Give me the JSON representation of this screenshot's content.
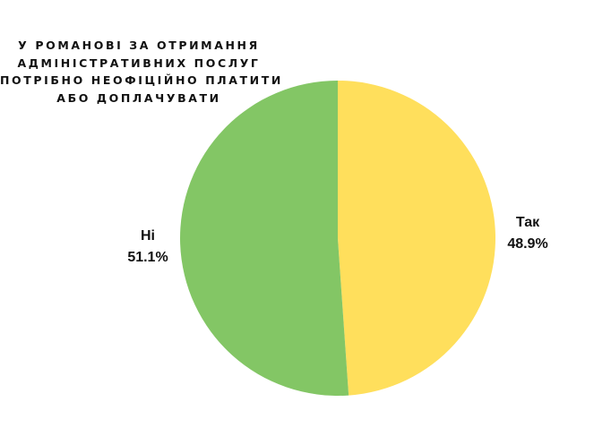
{
  "chart_data": {
    "type": "pie",
    "title_lines": [
      "У РОМАНОВІ ЗА ОТРИМАННЯ",
      "АДМІНІСТРАТИВНИХ ПОСЛУГ",
      "ПОТРІБНО НЕОФІЦІЙНО ПЛАТИТИ",
      "АБО ДОПЛАЧУВАТИ"
    ],
    "slices": [
      {
        "label": "Так",
        "value": 48.9,
        "display": "48.9%",
        "color": "#FFDF5C"
      },
      {
        "label": "Ні",
        "value": 51.1,
        "display": "51.1%",
        "color": "#83C665"
      }
    ],
    "start": "top",
    "direction": "clockwise"
  }
}
